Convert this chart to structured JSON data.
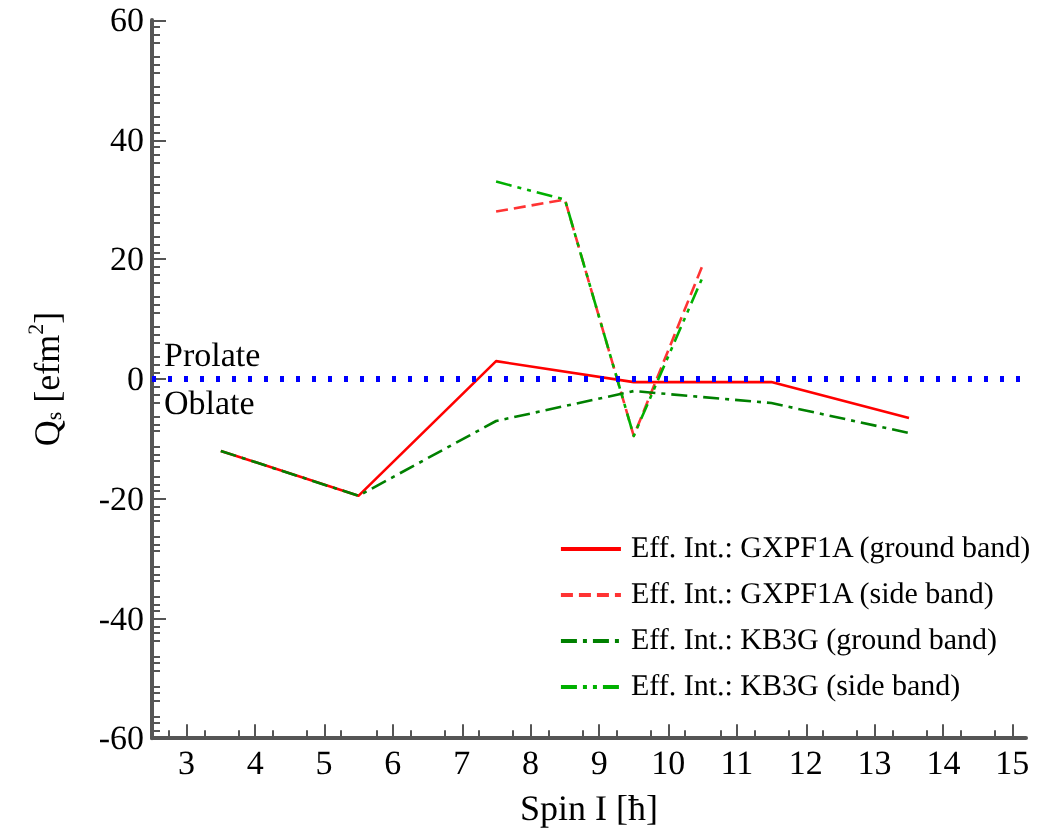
{
  "chart_data": {
    "type": "line",
    "xlabel": "Spin I [ħ]",
    "ylabel": "Q$_{s}$ [efm$^{2}$]",
    "xlim": [
      2.5,
      15.2
    ],
    "ylim": [
      -60,
      60
    ],
    "xticks": [
      3,
      4,
      5,
      6,
      7,
      8,
      9,
      10,
      11,
      12,
      13,
      14,
      15
    ],
    "yticks": [
      -60,
      -40,
      -20,
      0,
      20,
      40,
      60
    ],
    "grid": false,
    "legend": "bottom right",
    "marker": "none",
    "series": [
      {
        "name": "Eff. Int.: GXPF1A (ground band)",
        "color": "#ff0000",
        "line_style": "solid",
        "x": [
          3.5,
          5.5,
          7.5,
          9.5,
          11.5,
          13.5
        ],
        "values": [
          -12,
          -19.5,
          3,
          -0.5,
          -0.5,
          -6.5
        ]
      },
      {
        "name": "Eff. Int.: GXPF1A (side band)",
        "color": "#ff3333",
        "line_style": "dashed",
        "x": [
          7.5,
          8.5,
          9.5,
          10.5
        ],
        "values": [
          28,
          30,
          -9.5,
          19
        ]
      },
      {
        "name": "Eff. Int.: KB3G (ground band)",
        "color": "#008000",
        "line_style": "dashdot",
        "x": [
          3.5,
          5.5,
          7.5,
          9.5,
          11.5,
          13.5
        ],
        "values": [
          -12,
          -19.5,
          -7,
          -2,
          -4,
          -9
        ]
      },
      {
        "name": "Eff. Int.: KB3G (side band)",
        "color": "#00b000",
        "line_style": "dashdotdot",
        "x": [
          7.5,
          8.5,
          9.5,
          10.5
        ],
        "values": [
          33,
          30,
          -9.5,
          17
        ]
      }
    ],
    "ref_lines": [
      {
        "axis": "y",
        "value": 0,
        "color": "#0000ff",
        "line_style": "dotted"
      }
    ],
    "annotations": [
      "Prolate",
      "Oblate"
    ]
  }
}
